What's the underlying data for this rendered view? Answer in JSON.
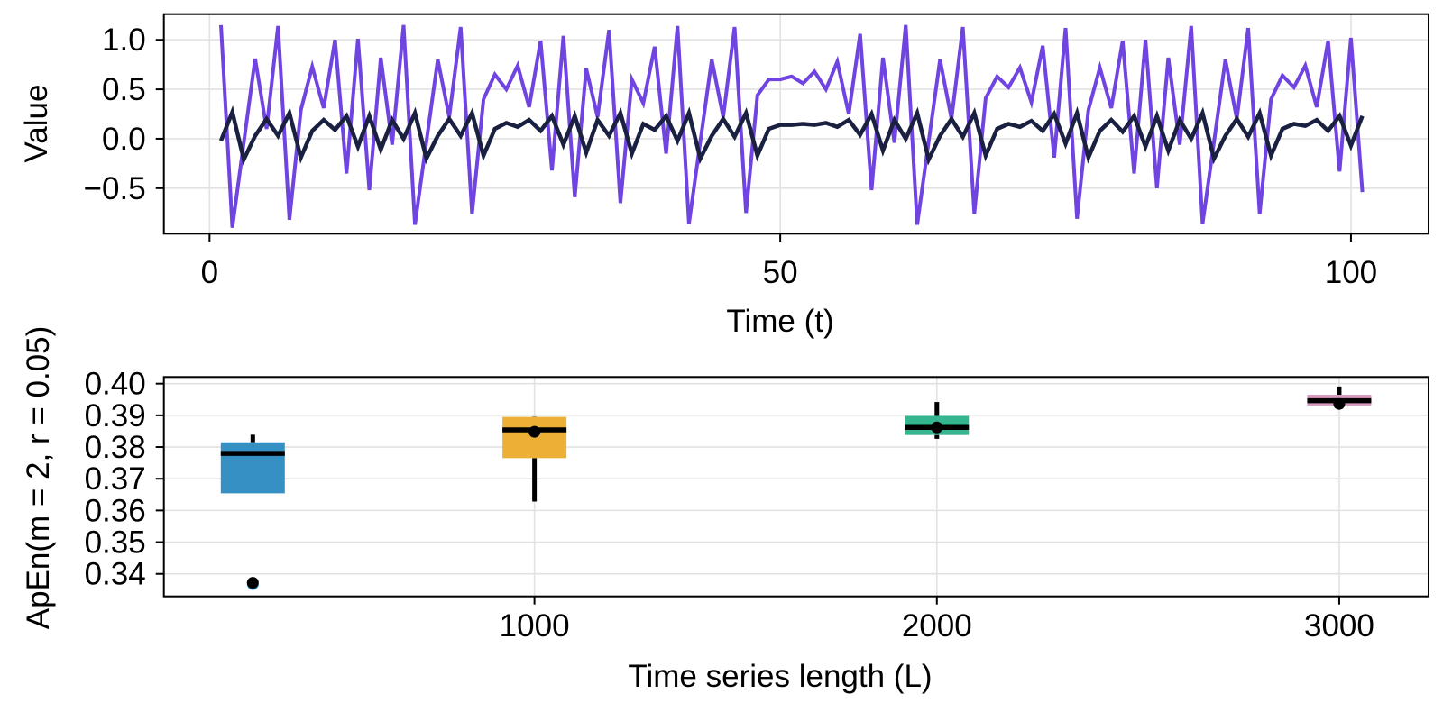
{
  "chart_data": [
    {
      "type": "line",
      "xlabel": "Time (t)",
      "ylabel": "Value",
      "xlim": [
        -4,
        106.8
      ],
      "ylim": [
        -0.96,
        1.26
      ],
      "xticks": [
        0,
        50,
        100
      ],
      "xtick_labels": [
        "0",
        "50",
        "100"
      ],
      "yticks": [
        1.0,
        0.5,
        0.0,
        -0.5
      ],
      "ytick_labels": [
        "1.0",
        "0.5",
        "0.0",
        "−0.5"
      ],
      "grid": true,
      "x": [
        1,
        2,
        3,
        4,
        5,
        6,
        7,
        8,
        9,
        10,
        11,
        12,
        13,
        14,
        15,
        16,
        17,
        18,
        19,
        20,
        21,
        22,
        23,
        24,
        25,
        26,
        27,
        28,
        29,
        30,
        31,
        32,
        33,
        34,
        35,
        36,
        37,
        38,
        39,
        40,
        41,
        42,
        43,
        44,
        45,
        46,
        47,
        48,
        49,
        50,
        51,
        52,
        53,
        54,
        55,
        56,
        57,
        58,
        59,
        60,
        61,
        62,
        63,
        64,
        65,
        66,
        67,
        68,
        69,
        70,
        71,
        72,
        73,
        74,
        75,
        76,
        77,
        78,
        79,
        80,
        81,
        82,
        83,
        84,
        85,
        86,
        87,
        88,
        89,
        90,
        91,
        92,
        93,
        94,
        95,
        96,
        97,
        98,
        99,
        100,
        101
      ],
      "series": [
        {
          "color": "#7044e0",
          "values": [
            1.15,
            -0.9,
            -0.04,
            0.81,
            0.1,
            1.14,
            -0.82,
            0.29,
            0.73,
            0.31,
            1.0,
            -0.35,
            1.01,
            -0.52,
            0.82,
            -0.06,
            1.15,
            -0.87,
            -0.03,
            0.8,
            0.22,
            1.13,
            -0.76,
            0.4,
            0.65,
            0.5,
            0.74,
            0.32,
            0.99,
            -0.32,
            1.04,
            -0.59,
            0.71,
            0.22,
            1.1,
            -0.65,
            0.6,
            0.36,
            0.93,
            -0.15,
            1.14,
            -0.86,
            -0.03,
            0.8,
            0.22,
            1.13,
            -0.75,
            0.44,
            0.6,
            0.6,
            0.63,
            0.56,
            0.68,
            0.5,
            0.78,
            0.25,
            1.06,
            -0.52,
            0.82,
            -0.04,
            1.15,
            -0.87,
            -0.03,
            0.8,
            0.2,
            1.13,
            -0.76,
            0.41,
            0.63,
            0.52,
            0.72,
            0.37,
            0.94,
            -0.19,
            1.12,
            -0.81,
            0.29,
            0.72,
            0.31,
            0.99,
            -0.35,
            1.0,
            -0.5,
            0.82,
            -0.06,
            1.14,
            -0.86,
            -0.03,
            0.8,
            0.2,
            1.12,
            -0.76,
            0.4,
            0.64,
            0.52,
            0.74,
            0.32,
            0.99,
            -0.33,
            1.02,
            -0.54
          ]
        },
        {
          "color": "#1a2040",
          "values": [
            -0.02,
            0.27,
            -0.21,
            0.03,
            0.2,
            0.03,
            0.26,
            -0.19,
            0.08,
            0.19,
            0.09,
            0.23,
            -0.08,
            0.23,
            -0.11,
            0.19,
            0.0,
            0.26,
            -0.2,
            0.03,
            0.2,
            0.03,
            0.26,
            -0.17,
            0.1,
            0.16,
            0.12,
            0.19,
            0.08,
            0.23,
            -0.06,
            0.23,
            -0.14,
            0.19,
            0.03,
            0.26,
            -0.15,
            0.15,
            0.09,
            0.23,
            -0.02,
            0.26,
            -0.2,
            0.03,
            0.2,
            0.02,
            0.26,
            -0.17,
            0.1,
            0.14,
            0.14,
            0.15,
            0.14,
            0.16,
            0.12,
            0.19,
            0.04,
            0.25,
            -0.12,
            0.19,
            0.0,
            0.26,
            -0.21,
            0.03,
            0.2,
            0.02,
            0.26,
            -0.17,
            0.1,
            0.15,
            0.12,
            0.18,
            0.08,
            0.25,
            -0.05,
            0.26,
            -0.19,
            0.08,
            0.19,
            0.07,
            0.23,
            -0.08,
            0.23,
            -0.12,
            0.19,
            0.0,
            0.26,
            -0.2,
            0.03,
            0.2,
            0.02,
            0.26,
            -0.17,
            0.1,
            0.15,
            0.13,
            0.19,
            0.08,
            0.23,
            -0.07,
            0.23
          ]
        }
      ]
    },
    {
      "type": "box",
      "xlabel": "Time series length (L)",
      "ylabel": "ApEn(m = 2, r = 0.05)",
      "xlim": [
        79,
        3222
      ],
      "ylim": [
        0.3329,
        0.4021
      ],
      "xticks": [
        1000,
        2000,
        3000
      ],
      "xtick_labels": [
        "1000",
        "2000",
        "3000"
      ],
      "yticks": [
        0.4,
        0.39,
        0.38,
        0.37,
        0.36,
        0.35,
        0.34
      ],
      "ytick_labels": [
        "0.40",
        "0.39",
        "0.38",
        "0.37",
        "0.36",
        "0.35",
        "0.34"
      ],
      "grid": true,
      "boxes": [
        {
          "x": 300,
          "color": "#3590c4",
          "whisker_low": 0.3654,
          "q1": 0.3654,
          "median": 0.378,
          "q3": 0.3815,
          "whisker_high": 0.3839,
          "outliers": [
            0.3372
          ],
          "point": 0.3372
        },
        {
          "x": 1000,
          "color": "#ebb035",
          "whisker_low": 0.3628,
          "q1": 0.3765,
          "median": 0.3854,
          "q3": 0.3895,
          "whisker_high": 0.3896,
          "outliers": [],
          "point": 0.3848
        },
        {
          "x": 2000,
          "color": "#35b690",
          "whisker_low": 0.3826,
          "q1": 0.3838,
          "median": 0.3862,
          "q3": 0.3898,
          "whisker_high": 0.3942,
          "outliers": [],
          "point": 0.3862
        },
        {
          "x": 3000,
          "color": "#d99abf",
          "whisker_low": 0.3931,
          "q1": 0.3931,
          "median": 0.3946,
          "q3": 0.3965,
          "whisker_high": 0.3991,
          "outliers": [],
          "point": 0.3936
        }
      ]
    }
  ]
}
